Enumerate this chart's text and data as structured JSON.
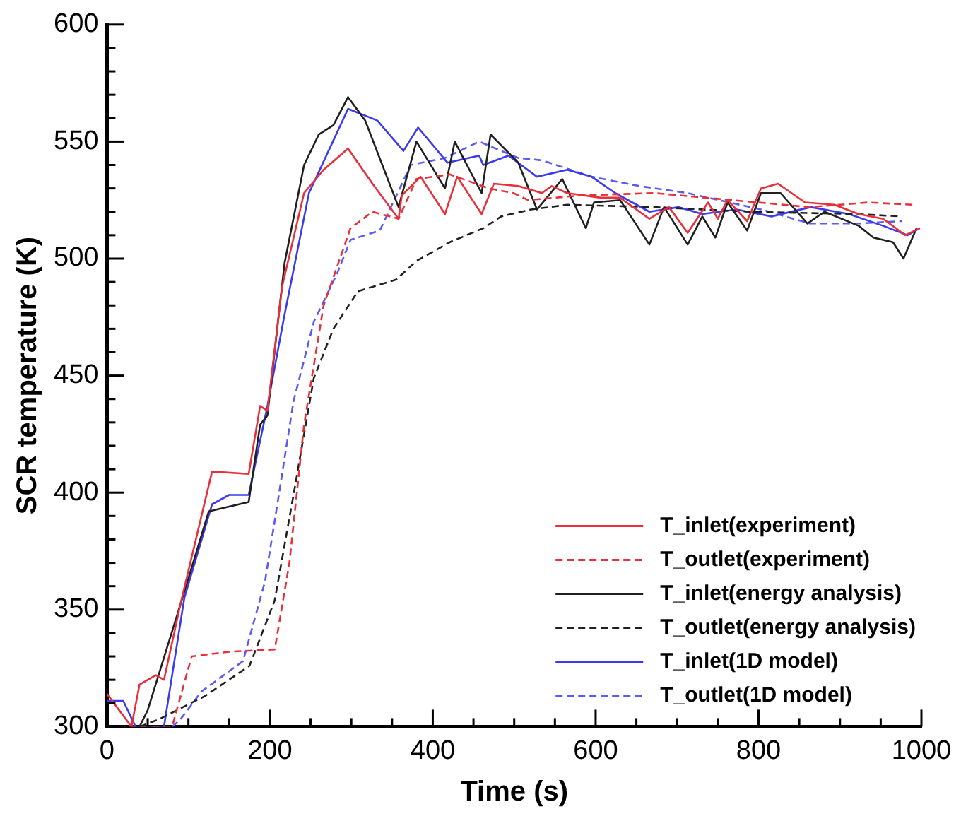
{
  "chart_data": {
    "type": "line",
    "xlabel": "Time (s)",
    "ylabel": "SCR temperature (K)",
    "xlim": [
      0,
      1000
    ],
    "ylim": [
      300,
      600
    ],
    "xticks": [
      0,
      {
        "value": 50,
        "label": null
      },
      200,
      {
        "value": 100,
        "label": null
      },
      {
        "value": 150,
        "label": null
      },
      {
        "value": 250,
        "label": null
      },
      {
        "value": 300,
        "label": null
      },
      {
        "value": 350,
        "label": null
      },
      400,
      {
        "value": 450,
        "label": null
      },
      {
        "value": 500,
        "label": null
      },
      {
        "value": 550,
        "label": null
      },
      600,
      {
        "value": 650,
        "label": null
      },
      {
        "value": 700,
        "label": null
      },
      {
        "value": 750,
        "label": null
      },
      800,
      {
        "value": 850,
        "label": null
      },
      {
        "value": 900,
        "label": null
      },
      {
        "value": 950,
        "label": null
      },
      1000
    ],
    "yticks": [
      300,
      {
        "value": 310,
        "label": null
      },
      {
        "value": 320,
        "label": null
      },
      {
        "value": 330,
        "label": null
      },
      {
        "value": 340,
        "label": null
      },
      350,
      {
        "value": 360,
        "label": null
      },
      {
        "value": 370,
        "label": null
      },
      {
        "value": 380,
        "label": null
      },
      {
        "value": 390,
        "label": null
      },
      400,
      {
        "value": 410,
        "label": null
      },
      {
        "value": 420,
        "label": null
      },
      {
        "value": 430,
        "label": null
      },
      {
        "value": 440,
        "label": null
      },
      450,
      {
        "value": 460,
        "label": null
      },
      {
        "value": 470,
        "label": null
      },
      {
        "value": 480,
        "label": null
      },
      {
        "value": 490,
        "label": null
      },
      500,
      {
        "value": 510,
        "label": null
      },
      {
        "value": 520,
        "label": null
      },
      {
        "value": 530,
        "label": null
      },
      {
        "value": 540,
        "label": null
      },
      550,
      {
        "value": 560,
        "label": null
      },
      {
        "value": 570,
        "label": null
      },
      {
        "value": 580,
        "label": null
      },
      {
        "value": 590,
        "label": null
      },
      600
    ],
    "grid": false,
    "legend": "bottom right",
    "marker": "none",
    "series": [
      {
        "name": "T_inlet(experiment)",
        "color": "#e8303a",
        "line_style": "solid",
        "x": [
          0,
          30,
          40,
          60,
          70,
          90,
          129,
          174,
          188,
          197,
          215,
          242,
          266,
          296,
          326,
          358,
          362,
          385,
          415,
          430,
          460,
          475,
          505,
          534,
          546,
          565,
          606,
          630,
          666,
          690,
          713,
          738,
          750,
          762,
          786,
          803,
          824,
          857,
          893,
          923,
          953,
          980,
          998
        ],
        "values": [
          314,
          300,
          318,
          322,
          320,
          352,
          409,
          408,
          437,
          435,
          488,
          528,
          538,
          547,
          532,
          517,
          527,
          535,
          519,
          535,
          519,
          532,
          531,
          528,
          531,
          528,
          526,
          526,
          517,
          522,
          511,
          524,
          517,
          525,
          516,
          530,
          532,
          524,
          523,
          519,
          517,
          510,
          513
        ]
      },
      {
        "name": "T_outlet(experiment)",
        "color": "#e8303a",
        "line_style": "dashed",
        "x": [
          0,
          80,
          104,
          150,
          206,
          224,
          242,
          266,
          299,
          326,
          358,
          380,
          421,
          469,
          499,
          517,
          582,
          672,
          767,
          863,
          935,
          989
        ],
        "values": [
          300,
          300,
          330,
          332,
          333,
          370,
          429,
          480,
          513,
          520,
          517,
          534,
          536,
          530,
          528,
          525,
          527,
          528,
          525,
          522,
          524,
          523
        ]
      },
      {
        "name": "T_inlet(energy analysis)",
        "color": "#202020",
        "line_style": "solid",
        "x": [
          40,
          50,
          90,
          125,
          174,
          188,
          197,
          218,
          242,
          260,
          278,
          296,
          317,
          358,
          380,
          415,
          427,
          460,
          471,
          505,
          528,
          559,
          588,
          598,
          630,
          666,
          684,
          713,
          731,
          747,
          762,
          786,
          803,
          827,
          860,
          881,
          923,
          941,
          965,
          978,
          994
        ],
        "values": [
          300,
          307,
          352,
          392,
          396,
          429,
          433,
          498,
          540,
          553,
          557,
          569,
          559,
          522,
          550,
          530,
          550,
          528,
          553,
          541,
          521,
          534,
          513,
          524,
          525,
          506,
          522,
          506,
          518,
          509,
          524,
          512,
          528,
          528,
          515,
          520,
          514,
          509,
          507,
          500,
          513
        ]
      },
      {
        "name": "T_outlet(energy analysis)",
        "color": "#202020",
        "line_style": "dashed",
        "x": [
          40,
          63,
          120,
          175,
          206,
          229,
          254,
          278,
          308,
          355,
          380,
          421,
          462,
          484,
          521,
          565,
          672,
          791,
          923,
          976
        ],
        "values": [
          300,
          303,
          313,
          326,
          354,
          399,
          449,
          470,
          486,
          491,
          499,
          507,
          513,
          518,
          521,
          523,
          522,
          520,
          519,
          518
        ]
      },
      {
        "name": "T_inlet(1D model)",
        "color": "#3a3af0",
        "line_style": "solid",
        "x": [
          0,
          20,
          35,
          70,
          95,
          129,
          150,
          174,
          197,
          218,
          248,
          272,
          296,
          332,
          364,
          382,
          418,
          457,
          462,
          493,
          528,
          565,
          595,
          624,
          666,
          702,
          731,
          773,
          816,
          864,
          911,
          953,
          983,
          998
        ],
        "values": [
          311,
          311,
          300,
          300,
          355,
          395,
          399,
          399,
          437,
          476,
          528,
          546,
          564,
          559,
          546,
          556,
          541,
          544,
          540,
          544,
          535,
          538,
          535,
          528,
          520,
          522,
          519,
          521,
          518,
          522,
          519,
          514,
          510,
          513
        ]
      },
      {
        "name": "T_outlet(1D model)",
        "color": "#5a5af5",
        "line_style": "dashed",
        "x": [
          80,
          90,
          116,
          167,
          194,
          211,
          229,
          254,
          283,
          299,
          335,
          373,
          415,
          457,
          505,
          534,
          595,
          654,
          713,
          803,
          863,
          923,
          976
        ],
        "values": [
          300,
          303,
          315,
          328,
          362,
          399,
          439,
          473,
          494,
          508,
          512,
          540,
          543,
          550,
          543,
          542,
          535,
          531,
          528,
          521,
          515,
          515,
          516
        ]
      }
    ]
  }
}
